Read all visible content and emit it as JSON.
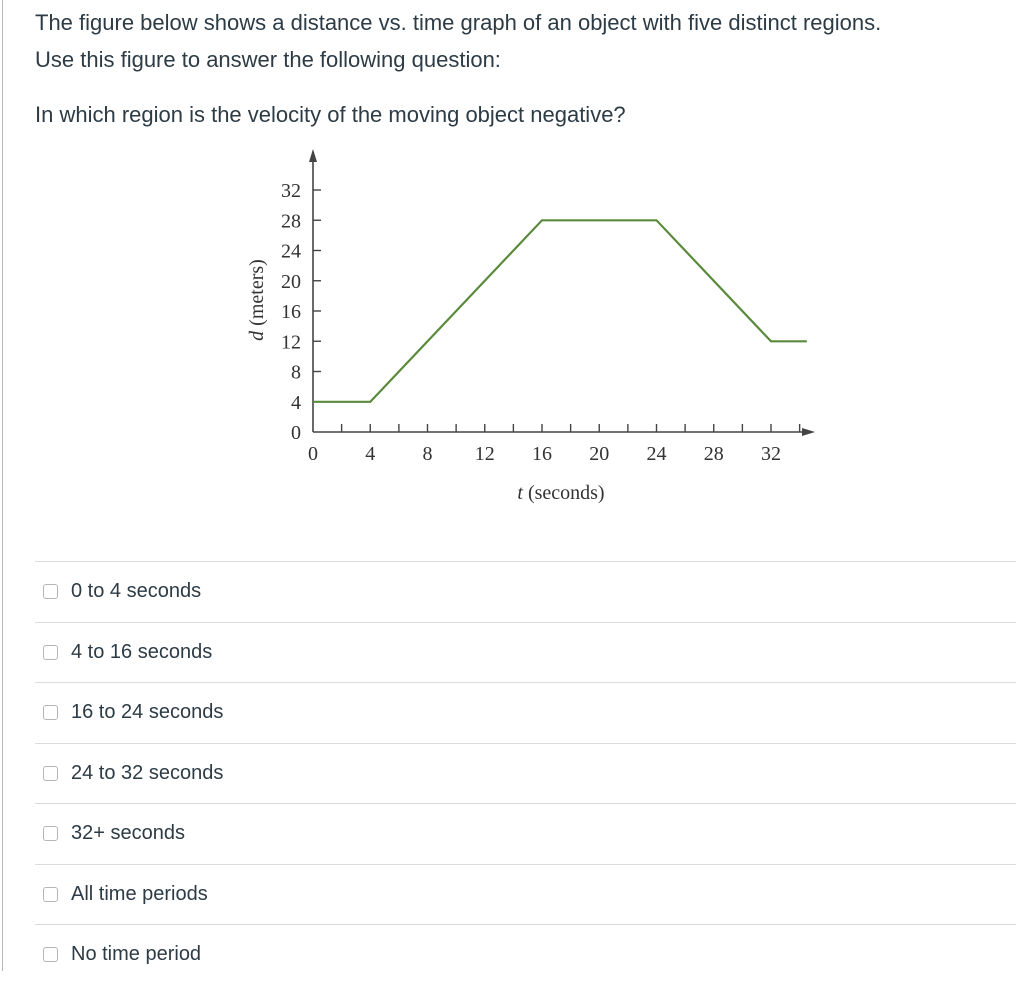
{
  "question": {
    "intro_line1": "The figure below shows a distance vs. time graph of an object with five distinct regions.",
    "intro_line2": "Use this figure to answer the following question:",
    "prompt": "In which region is the velocity of the moving object negative?"
  },
  "figure": {
    "xlabel_var": "t",
    "xlabel_unit": "(seconds)",
    "ylabel_var": "d",
    "ylabel_unit": "(meters)",
    "line_color": "#5a8a3c"
  },
  "answers": [
    {
      "label": "0 to 4 seconds",
      "checked": false
    },
    {
      "label": "4 to 16 seconds",
      "checked": false
    },
    {
      "label": "16 to 24 seconds",
      "checked": false
    },
    {
      "label": "24 to 32 seconds",
      "checked": false
    },
    {
      "label": "32+ seconds",
      "checked": false
    },
    {
      "label": "All time periods",
      "checked": false
    },
    {
      "label": "No time period",
      "checked": false
    }
  ],
  "chart_data": {
    "type": "line",
    "title": "",
    "xlabel": "t (seconds)",
    "ylabel": "d (meters)",
    "x_ticks": [
      0,
      4,
      8,
      12,
      16,
      20,
      24,
      28,
      32
    ],
    "y_ticks": [
      0,
      4,
      8,
      12,
      16,
      20,
      24,
      28,
      32
    ],
    "x_minor_step": 2,
    "xlim": [
      0,
      35
    ],
    "ylim": [
      0,
      34
    ],
    "grid": false,
    "series": [
      {
        "name": "distance",
        "x": [
          0,
          4,
          16,
          24,
          32,
          34.5
        ],
        "y": [
          4,
          4,
          28,
          28,
          12,
          12
        ]
      }
    ]
  }
}
